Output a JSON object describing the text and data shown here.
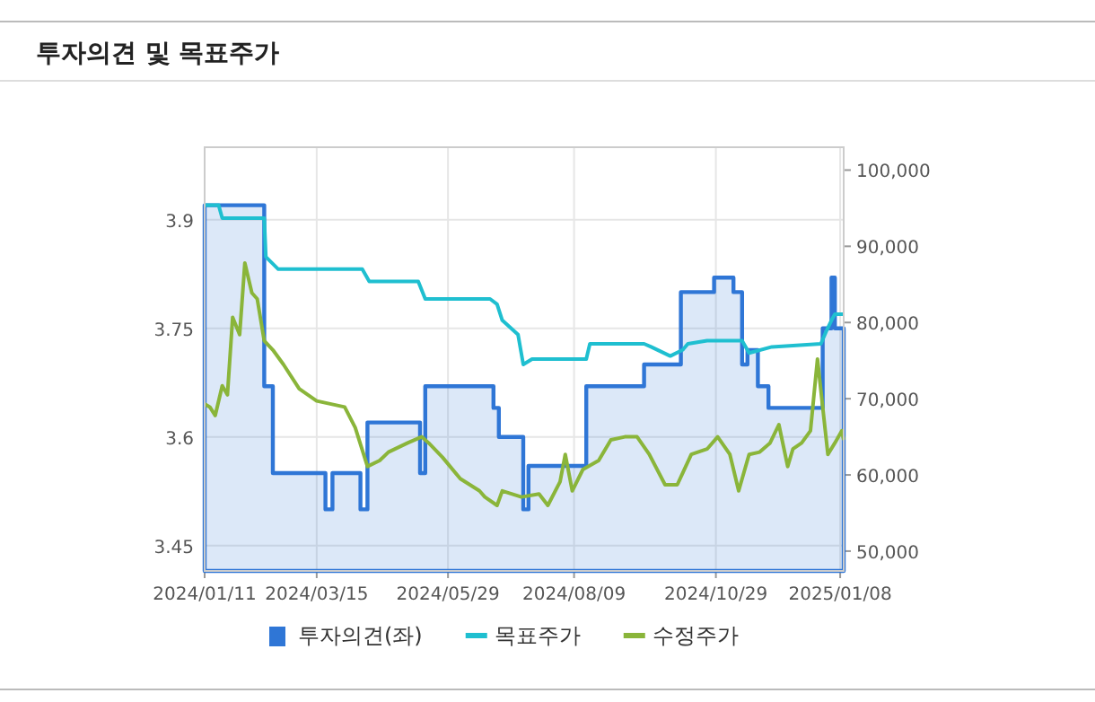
{
  "chart_data": {
    "type": "line",
    "title": "투자의견 및 목표주가",
    "xlim": [
      "2024-01-11",
      "2025-01-10"
    ],
    "xticks": [
      {
        "value": "2024-01-11",
        "label": "2024/01/11"
      },
      {
        "value": "2024-03-15",
        "label": "2024/03/15"
      },
      {
        "value": "2024-05-29",
        "label": "2024/05/29"
      },
      {
        "value": "2024-08-09",
        "label": "2024/08/09"
      },
      {
        "value": "2024-10-29",
        "label": "2024/10/29"
      },
      {
        "value": "2025-01-08",
        "label": "2025/01/08"
      }
    ],
    "ylim": [
      3.415,
      4.0
    ],
    "yticks": [
      3.45,
      3.6,
      3.75,
      3.9
    ],
    "y2lim": [
      47400,
      103000
    ],
    "y2ticks": [
      {
        "value": 50000,
        "label": "50,000"
      },
      {
        "value": 60000,
        "label": "60,000"
      },
      {
        "value": 70000,
        "label": "70,000"
      },
      {
        "value": 80000,
        "label": "80,000"
      },
      {
        "value": 90000,
        "label": "90,000"
      },
      {
        "value": 100000,
        "label": "100,000"
      }
    ],
    "grid": true,
    "legend": "bottom",
    "series": [
      {
        "name": "투자의견(좌)",
        "type": "area",
        "color": "#2f76d6",
        "x": [
          "2024-01-11",
          "2024-02-14",
          "2024-02-14",
          "2024-02-19",
          "2024-02-19",
          "2024-03-20",
          "2024-03-20",
          "2024-03-24",
          "2024-03-24",
          "2024-04-09",
          "2024-04-09",
          "2024-04-13",
          "2024-04-13",
          "2024-05-13",
          "2024-05-13",
          "2024-05-16",
          "2024-05-16",
          "2024-06-24",
          "2024-06-24",
          "2024-06-27",
          "2024-06-27",
          "2024-07-11",
          "2024-07-11",
          "2024-07-14",
          "2024-07-14",
          "2024-08-16",
          "2024-08-16",
          "2024-09-18",
          "2024-09-18",
          "2024-10-09",
          "2024-10-09",
          "2024-10-28",
          "2024-10-28",
          "2024-11-08",
          "2024-11-08",
          "2024-11-13",
          "2024-11-13",
          "2024-11-16",
          "2024-11-16",
          "2024-11-22",
          "2024-11-22",
          "2024-11-28",
          "2024-11-28",
          "2024-12-29",
          "2024-12-29",
          "2025-01-03",
          "2025-01-03",
          "2025-01-05",
          "2025-01-05",
          "2025-01-10"
        ],
        "values": [
          3.92,
          3.92,
          3.67,
          3.67,
          3.55,
          3.55,
          3.5,
          3.5,
          3.55,
          3.55,
          3.5,
          3.5,
          3.62,
          3.62,
          3.55,
          3.55,
          3.67,
          3.67,
          3.64,
          3.64,
          3.6,
          3.6,
          3.5,
          3.5,
          3.56,
          3.56,
          3.67,
          3.67,
          3.7,
          3.7,
          3.8,
          3.8,
          3.82,
          3.82,
          3.8,
          3.8,
          3.7,
          3.7,
          3.72,
          3.72,
          3.67,
          3.67,
          3.64,
          3.64,
          3.75,
          3.75,
          3.82,
          3.82,
          3.75,
          3.75
        ]
      },
      {
        "name": "목표주가",
        "axis": "y2",
        "color": "#1fbfd0",
        "x": [
          "2024-01-11",
          "2024-01-19",
          "2024-01-21",
          "2024-02-14",
          "2024-02-15",
          "2024-02-22",
          "2024-04-10",
          "2024-04-14",
          "2024-05-12",
          "2024-05-16",
          "2024-06-22",
          "2024-06-26",
          "2024-06-29",
          "2024-07-08",
          "2024-07-11",
          "2024-07-16",
          "2024-08-16",
          "2024-08-18",
          "2024-09-18",
          "2024-09-22",
          "2024-10-03",
          "2024-10-10",
          "2024-10-13",
          "2024-10-24",
          "2024-11-13",
          "2024-11-17",
          "2024-11-30",
          "2024-12-28",
          "2024-12-31",
          "2025-01-03",
          "2025-01-05",
          "2025-01-10"
        ],
        "values": [
          95400,
          95400,
          93700,
          93700,
          88600,
          87000,
          87000,
          85400,
          85400,
          83100,
          83100,
          82400,
          80300,
          78400,
          74500,
          75200,
          75200,
          77200,
          77200,
          76800,
          75600,
          76400,
          77200,
          77600,
          77600,
          76000,
          76800,
          77200,
          78800,
          80300,
          81100,
          81100
        ]
      },
      {
        "name": "수정주가",
        "axis": "y2",
        "color": "#8ab53a",
        "x": [
          "2024-01-11",
          "2024-01-14",
          "2024-01-17",
          "2024-01-21",
          "2024-01-24",
          "2024-01-27",
          "2024-01-31",
          "2024-02-03",
          "2024-02-07",
          "2024-02-10",
          "2024-02-14",
          "2024-02-19",
          "2024-02-25",
          "2024-03-05",
          "2024-03-15",
          "2024-03-31",
          "2024-04-06",
          "2024-04-13",
          "2024-04-20",
          "2024-04-25",
          "2024-05-06",
          "2024-05-14",
          "2024-05-18",
          "2024-05-26",
          "2024-06-05",
          "2024-06-16",
          "2024-06-19",
          "2024-06-26",
          "2024-06-29",
          "2024-07-10",
          "2024-07-20",
          "2024-07-25",
          "2024-08-01",
          "2024-08-04",
          "2024-08-08",
          "2024-08-14",
          "2024-08-23",
          "2024-08-30",
          "2024-09-07",
          "2024-09-14",
          "2024-09-21",
          "2024-09-30",
          "2024-10-07",
          "2024-10-15",
          "2024-10-24",
          "2024-10-30",
          "2024-11-06",
          "2024-11-11",
          "2024-11-17",
          "2024-11-23",
          "2024-11-29",
          "2024-12-04",
          "2024-12-09",
          "2024-12-12",
          "2024-12-17",
          "2024-12-22",
          "2024-12-26",
          "2024-12-29",
          "2025-01-01",
          "2025-01-05",
          "2025-01-09",
          "2025-01-10"
        ],
        "values": [
          69300,
          68900,
          67800,
          71700,
          70500,
          80700,
          78400,
          87800,
          83900,
          83100,
          77600,
          76400,
          74500,
          71300,
          69700,
          68900,
          66200,
          61100,
          61900,
          63000,
          64200,
          65000,
          64200,
          62300,
          59500,
          57900,
          57100,
          56000,
          57900,
          57100,
          57500,
          56000,
          59100,
          62700,
          57900,
          60700,
          61900,
          64600,
          65000,
          65000,
          62700,
          58700,
          58700,
          62700,
          63400,
          65000,
          62700,
          57900,
          62700,
          63000,
          64200,
          66600,
          61100,
          63400,
          64200,
          65800,
          75200,
          68900,
          62700,
          64200,
          65800,
          64600
        ]
      }
    ]
  }
}
